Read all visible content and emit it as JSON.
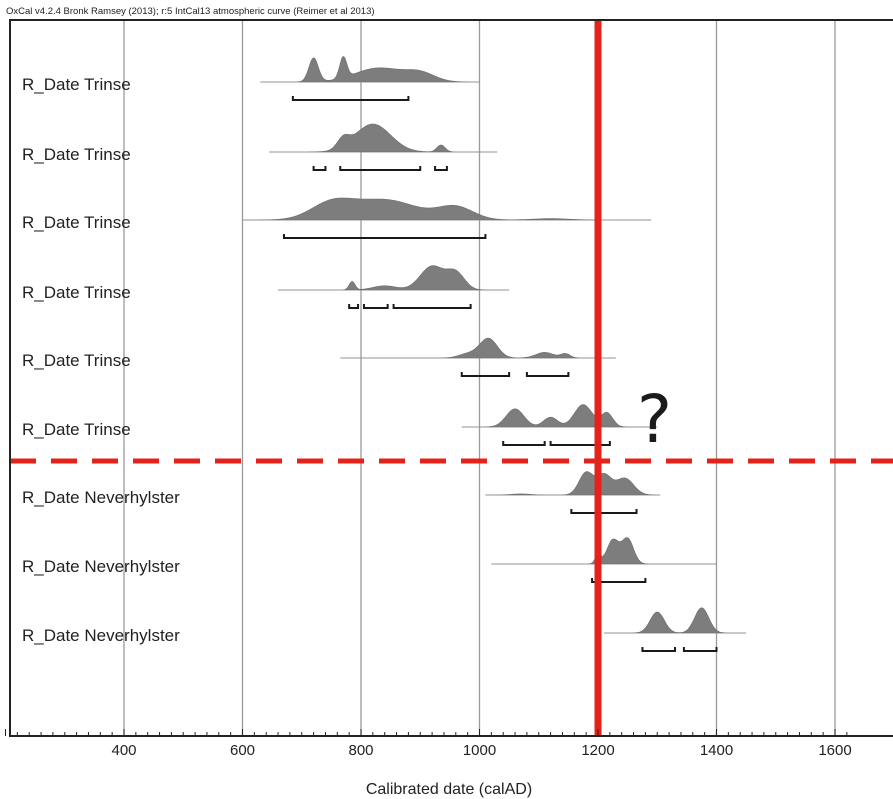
{
  "chart_data": {
    "type": "area",
    "header": "OxCal v4.2.4 Bronk Ramsey (2013); r:5 IntCal13 atmospheric curve (Reimer et al 2013)",
    "xlabel": "Calibrated date (calAD)",
    "xlim": [
      190,
      1630
    ],
    "xticks": [
      400,
      600,
      800,
      1000,
      1200,
      1400,
      1600
    ],
    "grid": true,
    "marker_line": {
      "x": 1200,
      "color": "#e32219"
    },
    "divider_color": "#e32219",
    "annotation": "?",
    "series": [
      {
        "name": "R_Date Trinse",
        "range": [
          630,
          1000
        ],
        "hpd": [
          [
            685,
            880
          ]
        ],
        "peaks": [
          [
            720,
            8,
            0.85
          ],
          [
            770,
            6,
            0.75
          ],
          [
            830,
            40,
            0.5
          ],
          [
            900,
            25,
            0.3
          ]
        ]
      },
      {
        "name": "R_Date Trinse",
        "range": [
          645,
          1030
        ],
        "hpd": [
          [
            720,
            740
          ],
          [
            765,
            900
          ],
          [
            925,
            945
          ]
        ],
        "peaks": [
          [
            820,
            30,
            1.0
          ],
          [
            770,
            10,
            0.35
          ],
          [
            935,
            7,
            0.25
          ]
        ]
      },
      {
        "name": "R_Date Trinse",
        "range": [
          600,
          1290
        ],
        "hpd": [
          [
            670,
            1010
          ]
        ],
        "peaks": [
          [
            750,
            35,
            0.55
          ],
          [
            840,
            55,
            0.72
          ],
          [
            960,
            30,
            0.45
          ],
          [
            1120,
            30,
            0.05
          ]
        ]
      },
      {
        "name": "R_Date Trinse",
        "range": [
          660,
          1050
        ],
        "hpd": [
          [
            780,
            795
          ],
          [
            805,
            845
          ],
          [
            855,
            985
          ]
        ],
        "peaks": [
          [
            785,
            5,
            0.3
          ],
          [
            920,
            20,
            0.85
          ],
          [
            960,
            15,
            0.6
          ],
          [
            840,
            20,
            0.15
          ]
        ]
      },
      {
        "name": "R_Date Trinse",
        "range": [
          765,
          1230
        ],
        "hpd": [
          [
            970,
            1050
          ],
          [
            1080,
            1150
          ]
        ],
        "peaks": [
          [
            1015,
            15,
            0.7
          ],
          [
            1110,
            15,
            0.2
          ],
          [
            1145,
            8,
            0.15
          ],
          [
            980,
            15,
            0.15
          ]
        ]
      },
      {
        "name": "R_Date Trinse",
        "range": [
          970,
          1300
        ],
        "hpd": [
          [
            1040,
            1110
          ],
          [
            1120,
            1220
          ]
        ],
        "peaks": [
          [
            1060,
            15,
            0.65
          ],
          [
            1120,
            12,
            0.35
          ],
          [
            1175,
            15,
            0.8
          ],
          [
            1215,
            10,
            0.5
          ]
        ]
      },
      {
        "name": "R_Date Neverhylster",
        "range": [
          1010,
          1305
        ],
        "hpd": [
          [
            1155,
            1265
          ]
        ],
        "peaks": [
          [
            1180,
            12,
            0.8
          ],
          [
            1210,
            12,
            0.7
          ],
          [
            1245,
            15,
            0.6
          ],
          [
            1070,
            15,
            0.04
          ]
        ]
      },
      {
        "name": "R_Date Neverhylster",
        "range": [
          1020,
          1400
        ],
        "hpd": [
          [
            1190,
            1280
          ]
        ],
        "peaks": [
          [
            1225,
            10,
            0.85
          ],
          [
            1250,
            10,
            0.9
          ],
          [
            1200,
            5,
            0.3
          ]
        ]
      },
      {
        "name": "R_Date Neverhylster",
        "range": [
          1210,
          1450
        ],
        "hpd": [
          [
            1275,
            1330
          ],
          [
            1345,
            1400
          ]
        ],
        "peaks": [
          [
            1300,
            12,
            0.75
          ],
          [
            1375,
            12,
            0.9
          ]
        ]
      }
    ]
  }
}
